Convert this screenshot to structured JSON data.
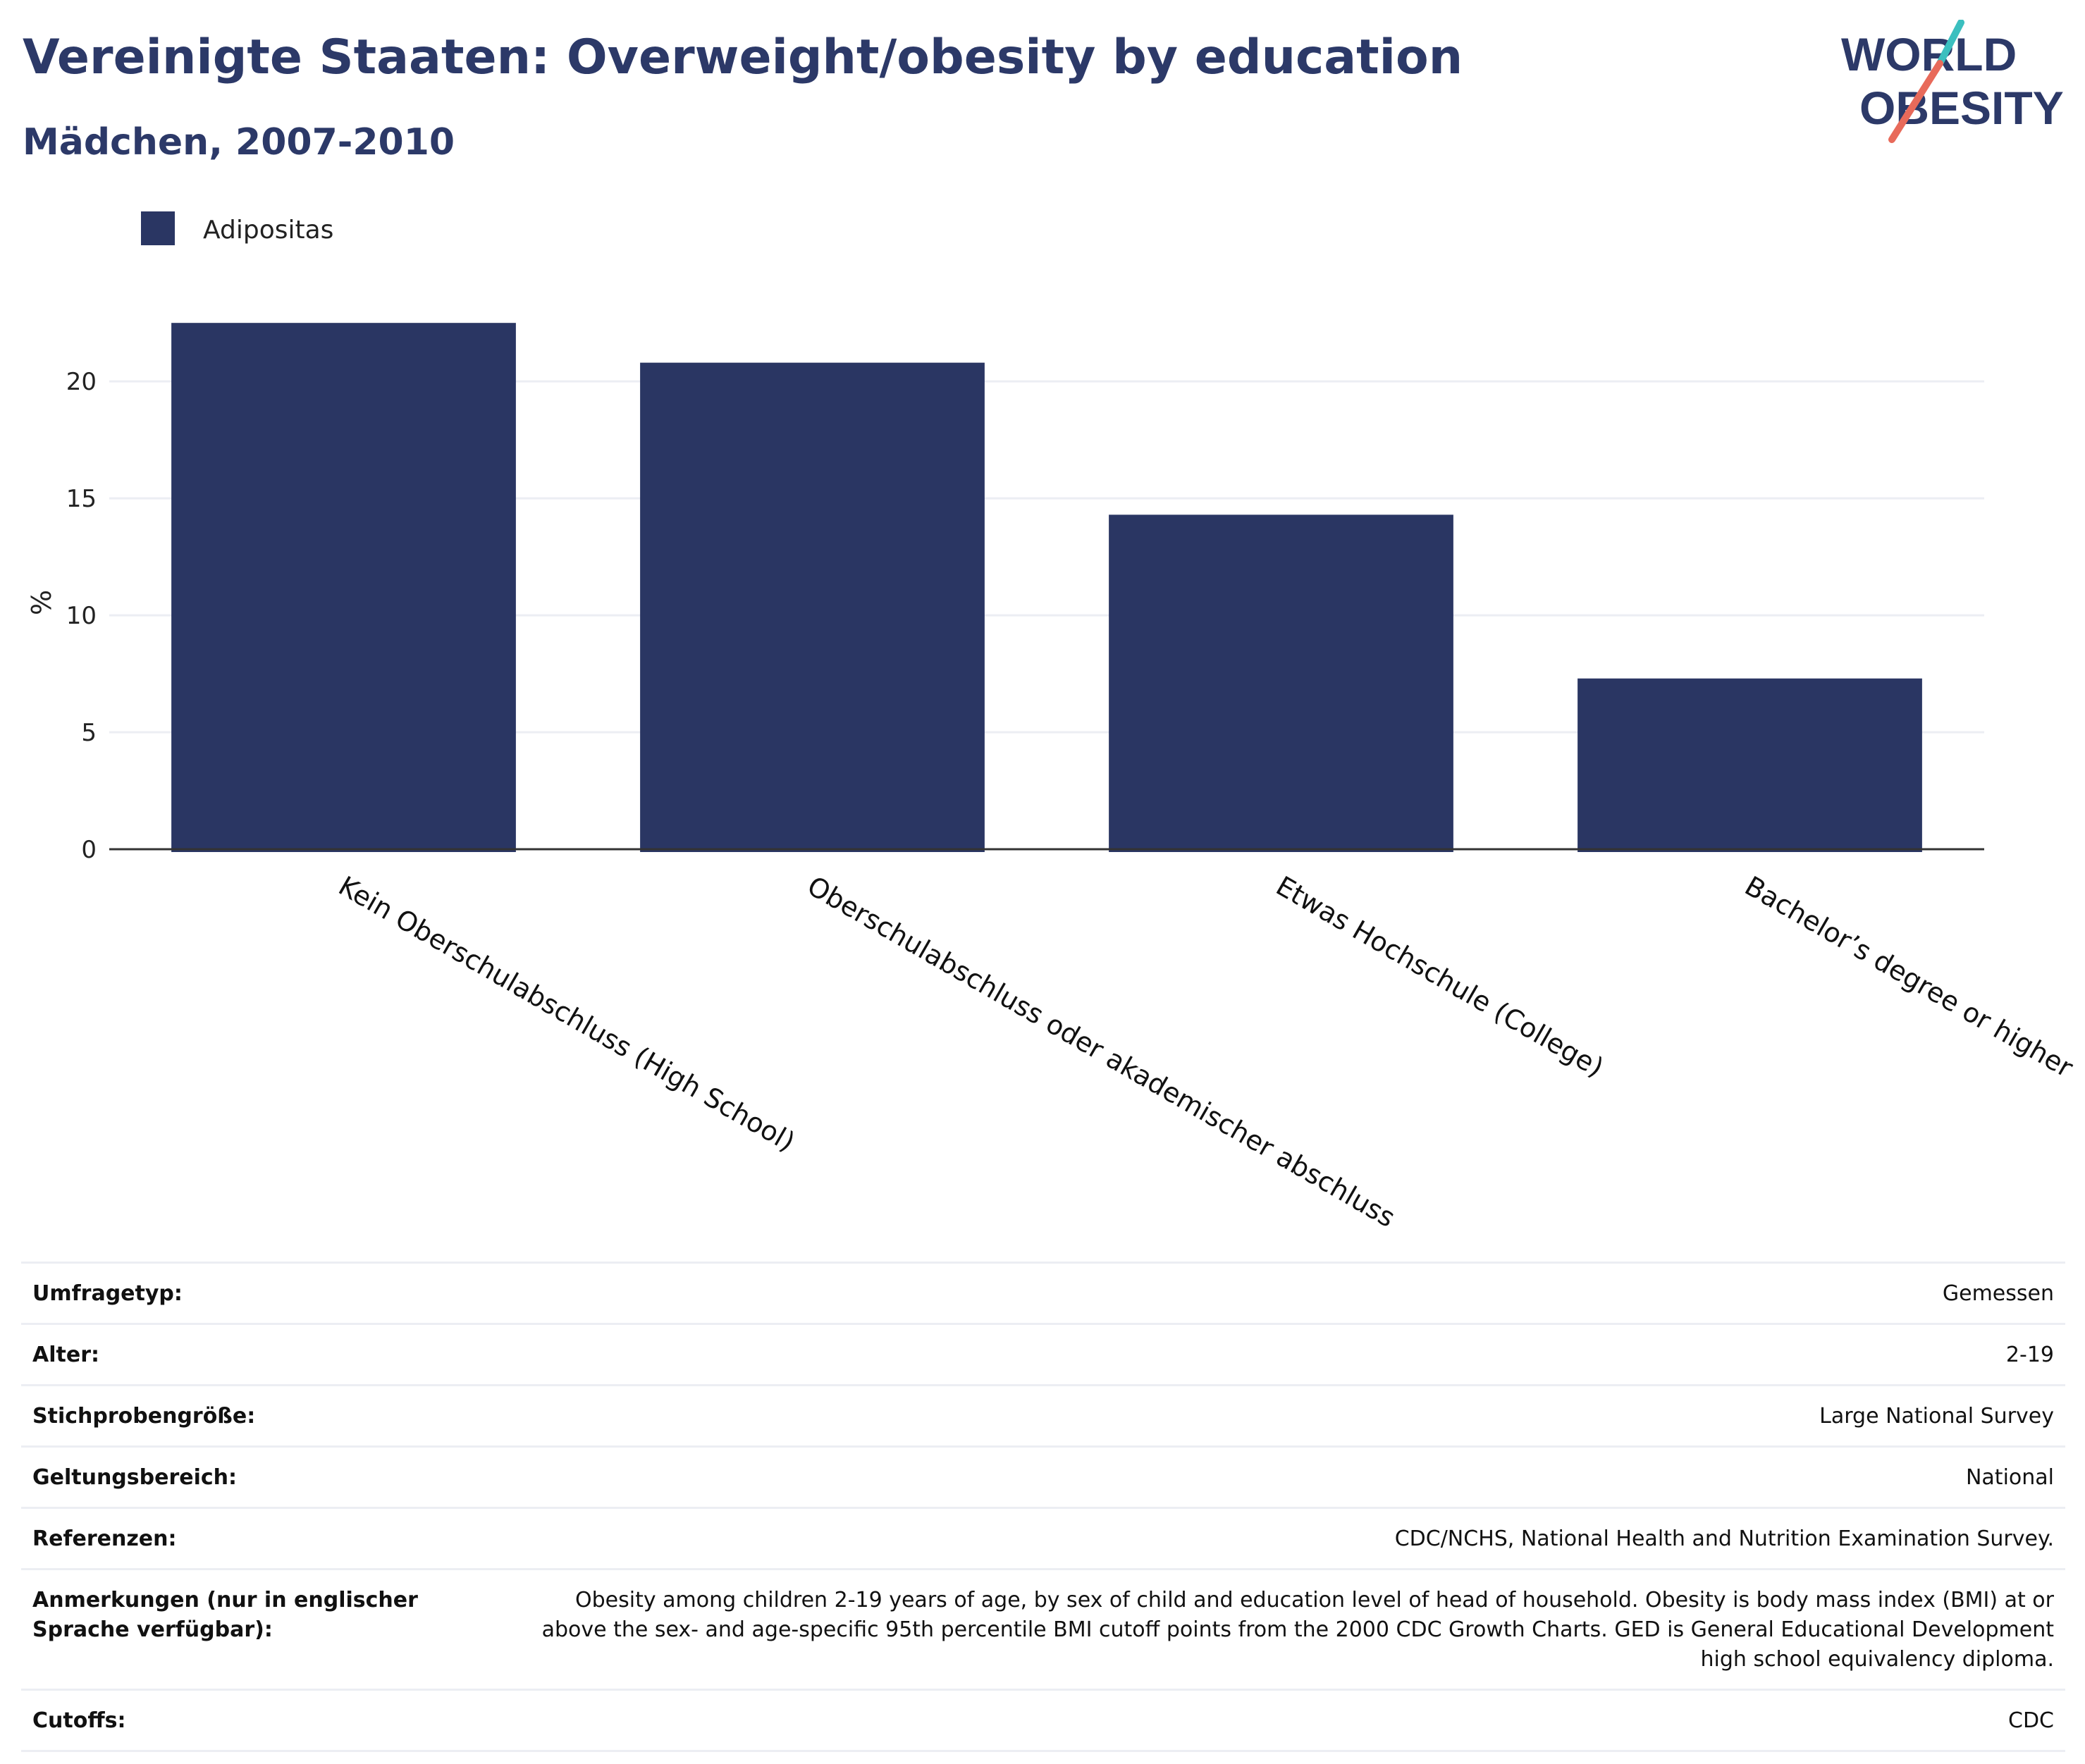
{
  "header": {
    "title": "Vereinigte Staaten: Overweight/obesity by education",
    "subtitle": "Mädchen, 2007-2010"
  },
  "logo": {
    "line1": "WORLD",
    "line2": "OBESITY"
  },
  "colors": {
    "bar": "#2a3663",
    "title": "#2c3968",
    "logo_teal": "#3bbfbf",
    "logo_coral": "#e86a5a",
    "gridline": "#eceef3",
    "axis": "#333333"
  },
  "chart_data": {
    "type": "bar",
    "categories": [
      "Kein Oberschulabschluss (High School)",
      "Oberschulabschluss oder akademischer abschluss",
      "Etwas Hochschule (College)",
      "Bachelor’s degree or higher"
    ],
    "series": [
      {
        "name": "Adipositas",
        "values": [
          22.5,
          20.8,
          14.3,
          7.3
        ]
      }
    ],
    "ylabel": "%",
    "ylim": [
      0,
      23.5
    ],
    "yticks": [
      0,
      5,
      10,
      15,
      20
    ],
    "grid": true,
    "legend": "top-left"
  },
  "info": [
    {
      "key": "Umfragetyp:",
      "value": "Gemessen"
    },
    {
      "key": "Alter:",
      "value": "2-19"
    },
    {
      "key": "Stichprobengröße:",
      "value": "Large National Survey"
    },
    {
      "key": "Geltungsbereich:",
      "value": "National"
    },
    {
      "key": "Referenzen:",
      "value": "CDC/NCHS, National Health and Nutrition Examination Survey."
    },
    {
      "key": "Anmerkungen (nur in englischer Sprache verfügbar):",
      "value": "Obesity among children 2-19 years of age, by sex of child and education level of head of household. Obesity is body mass index (BMI) at or above the sex- and age-specific 95th percentile BMI cutoff points from the 2000 CDC Growth Charts. GED is General Educational Development high school equivalency diploma."
    },
    {
      "key": "Cutoffs:",
      "value": "CDC"
    }
  ]
}
